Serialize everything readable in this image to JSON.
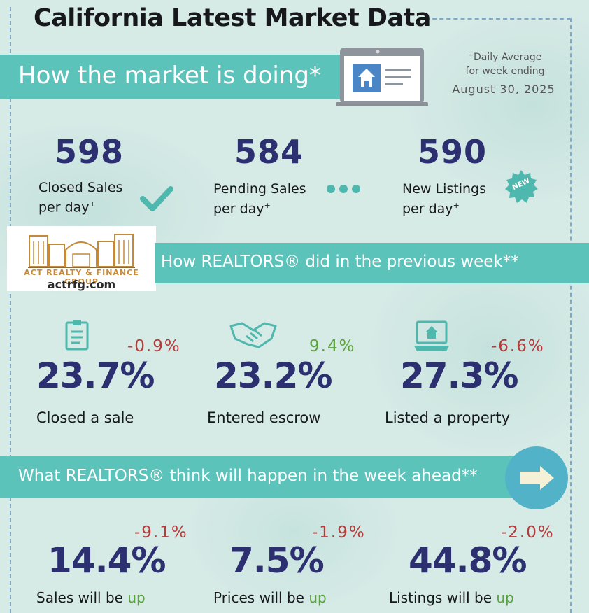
{
  "title": "California Latest Market Data",
  "section1": {
    "banner": "How the market is doing*",
    "note_line1": "⁺Daily Average",
    "note_line2": "for week ending",
    "date": "August 30, 2025",
    "stats": [
      {
        "value": "598",
        "line1": "Closed Sales",
        "line2": "per day",
        "icon": "check-icon"
      },
      {
        "value": "584",
        "line1": "Pending Sales",
        "line2": "per day",
        "icon": "dots-icon"
      },
      {
        "value": "590",
        "line1": "New Listings",
        "line2": "per day",
        "icon": "new-badge-icon",
        "badge": "NEW"
      }
    ]
  },
  "logo": {
    "name": "ACT REALTY & FINANCE GROUP",
    "url": "actrfg.com"
  },
  "section2": {
    "banner": "How REALTORS® did in the previous week**",
    "items": [
      {
        "value": "23.7%",
        "change": "-0.9%",
        "label": "Closed a sale",
        "icon": "clipboard-icon"
      },
      {
        "value": "23.2%",
        "change": "9.4%",
        "label": "Entered escrow",
        "icon": "handshake-icon"
      },
      {
        "value": "27.3%",
        "change": "-6.6%",
        "label": "Listed a property",
        "icon": "laptop-house-icon"
      }
    ]
  },
  "section3": {
    "banner": "What REALTORS® think will happen in the week ahead**",
    "items": [
      {
        "value": "14.4%",
        "change": "-9.1%",
        "label_prefix": "Sales will be ",
        "label_word": "up"
      },
      {
        "value": "7.5%",
        "change": "-1.9%",
        "label_prefix": "Prices will be ",
        "label_word": "up"
      },
      {
        "value": "44.8%",
        "change": "-2.0%",
        "label_prefix": "Listings will be ",
        "label_word": "up"
      }
    ]
  },
  "colors": {
    "banner": "#5cc3bb",
    "number": "#2c3070",
    "negative": "#b53a3a",
    "positive": "#5aa23c"
  }
}
